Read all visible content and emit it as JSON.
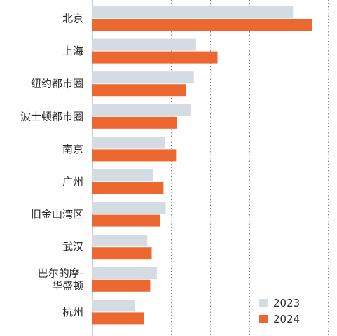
{
  "chart_data": {
    "type": "bar",
    "orientation": "horizontal",
    "categories": [
      "北京",
      "上海",
      "纽约都市圈",
      "波士顿都市圈",
      "南京",
      "广州",
      "旧金山湾区",
      "武汉",
      "巴尔的摩-华盛顿",
      "杭州"
    ],
    "category_lines": [
      [
        "北京"
      ],
      [
        "上海"
      ],
      [
        "纽约都市圈"
      ],
      [
        "波士顿都市圈"
      ],
      [
        "南京"
      ],
      [
        "广州"
      ],
      [
        "旧金山湾区"
      ],
      [
        "武汉"
      ],
      [
        "巴尔的摩-",
        "华盛顿"
      ],
      [
        "杭州"
      ]
    ],
    "series": [
      {
        "name": "2023",
        "color": "#d4dbe2",
        "values": [
          271,
          140,
          137,
          133,
          98,
          82,
          99,
          74,
          87,
          57
        ]
      },
      {
        "name": "2024",
        "color": "#ec6830",
        "values": [
          297,
          169,
          126,
          114,
          113,
          96,
          91,
          80,
          78,
          70
        ]
      }
    ],
    "xlim": [
      0,
      320
    ],
    "gridlines": [
      0,
      53,
      106,
      159,
      212,
      265,
      318
    ],
    "grid": true,
    "legend_position": "bottom-right"
  }
}
